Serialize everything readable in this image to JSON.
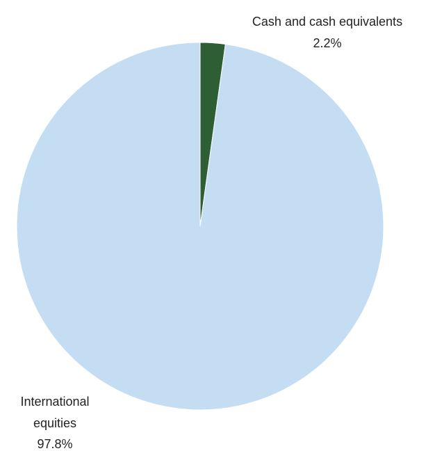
{
  "chart_data": {
    "type": "pie",
    "title": "",
    "slices": [
      {
        "label": "Cash and cash equivalents",
        "value": 2.2,
        "value_label": "2.2%",
        "color": "#2E5E33"
      },
      {
        "label": "International equities",
        "label_lines": [
          "International",
          "equities"
        ],
        "value": 97.8,
        "value_label": "97.8%",
        "color": "#C5DDF3"
      }
    ],
    "start_angle": "12 o'clock",
    "direction": "clockwise",
    "legend": "none"
  }
}
